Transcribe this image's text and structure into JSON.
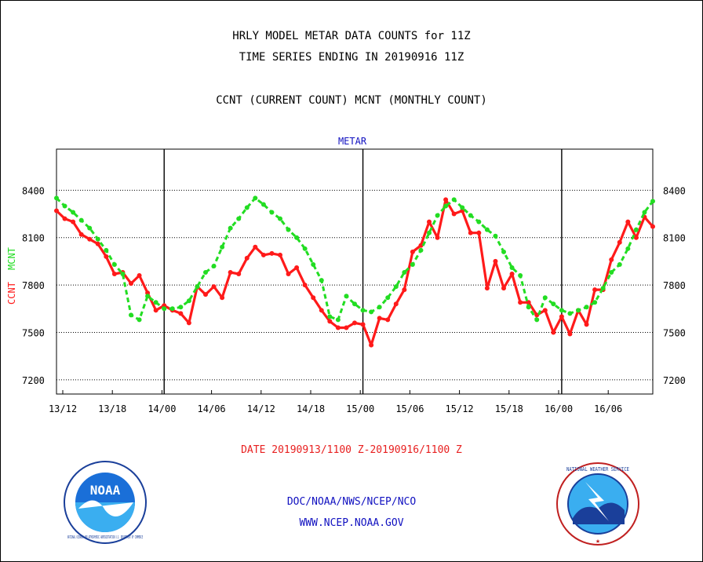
{
  "titles": {
    "line1": "HRLY MODEL METAR DATA COUNTS for 11Z",
    "line2": "TIME SERIES ENDING IN 20190916 11Z",
    "line3": "CCNT (CURRENT COUNT) MCNT (MONTHLY COUNT)"
  },
  "footer": {
    "date_range": "DATE 20190913/1100 Z-20190916/1100 Z",
    "org": "DOC/NOAA/NWS/NCEP/NCO",
    "url": "WWW.NCEP.NOAA.GOV"
  },
  "logos": {
    "left": {
      "text": "NOAA",
      "ring": "NATIONAL OCEANIC AND ATMOSPHERIC ADMINISTRATION  U.S. DEPARTMENT OF COMMERCE"
    },
    "right": {
      "ring": "NATIONAL WEATHER SERVICE"
    }
  },
  "colors": {
    "ccnt": "#ff1a1a",
    "mcnt": "#22dd22",
    "label_blue": "#1010c0",
    "date_red": "#e82020"
  },
  "chart_data": {
    "type": "line",
    "title": "METAR",
    "ylabel_parts": [
      "CCNT",
      "MCNT"
    ],
    "x_tick_labels": [
      "13/12",
      "13/18",
      "14/00",
      "14/06",
      "14/12",
      "14/18",
      "15/00",
      "15/06",
      "15/12",
      "15/18",
      "16/00",
      "16/06"
    ],
    "y_ticks": [
      7200,
      7500,
      7800,
      8100,
      8400
    ],
    "ylim": [
      7110,
      8660
    ],
    "x_range_hours": [
      0,
      72
    ],
    "day_boundaries_hours": [
      13,
      37,
      61
    ],
    "grid": "horizontal dotted",
    "series": [
      {
        "name": "CCNT",
        "color": "#ff1a1a",
        "values": [
          8270,
          8220,
          8200,
          8120,
          8090,
          8060,
          7980,
          7870,
          7880,
          7810,
          7860,
          7750,
          7640,
          7670,
          7640,
          7620,
          7560,
          7790,
          7740,
          7790,
          7720,
          7880,
          7870,
          7970,
          8040,
          7990,
          8000,
          7990,
          7870,
          7910,
          7800,
          7720,
          7640,
          7570,
          7530,
          7530,
          7560,
          7550,
          7420,
          7590,
          7580,
          7680,
          7770,
          8010,
          8050,
          8200,
          8100,
          8340,
          8250,
          8270,
          8130,
          8130,
          7780,
          7950,
          7780,
          7870,
          7690,
          7690,
          7610,
          7640,
          7500,
          7600,
          7490,
          7640,
          7550,
          7770,
          7770,
          7960,
          8070,
          8200,
          8100,
          8230,
          8170
        ]
      },
      {
        "name": "MCNT",
        "color": "#22dd22",
        "values": [
          8350,
          8300,
          8260,
          8210,
          8160,
          8090,
          8020,
          7930,
          7870,
          7610,
          7580,
          7730,
          7690,
          7650,
          7650,
          7660,
          7700,
          7790,
          7880,
          7920,
          8040,
          8160,
          8220,
          8290,
          8350,
          8310,
          8260,
          8220,
          8150,
          8100,
          8030,
          7930,
          7830,
          7600,
          7580,
          7730,
          7680,
          7640,
          7630,
          7660,
          7720,
          7790,
          7880,
          7930,
          8020,
          8130,
          8240,
          8300,
          8340,
          8290,
          8240,
          8200,
          8150,
          8110,
          8010,
          7910,
          7860,
          7660,
          7580,
          7720,
          7680,
          7640,
          7620,
          7640,
          7660,
          7690,
          7780,
          7880,
          7930,
          8030,
          8150,
          8260,
          8330
        ]
      }
    ]
  }
}
